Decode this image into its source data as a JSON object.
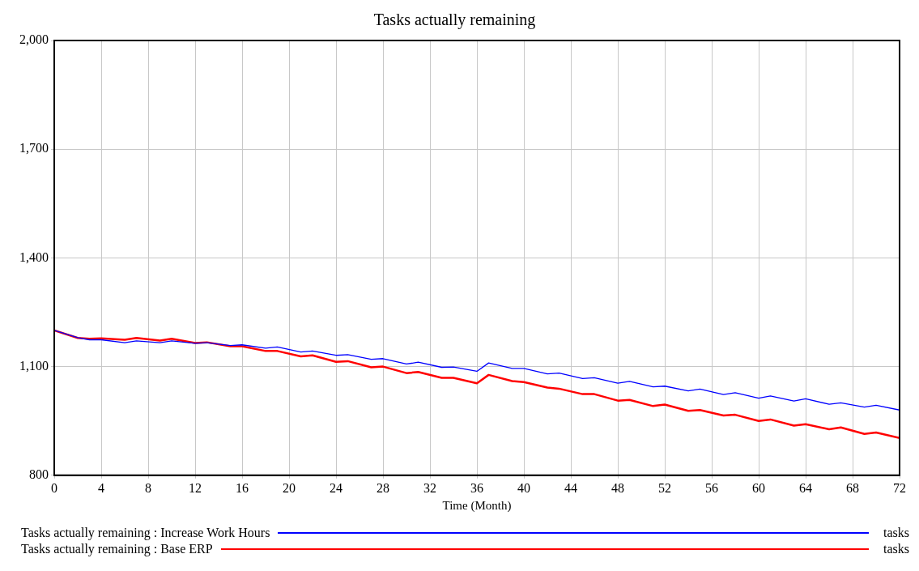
{
  "chart_data": {
    "type": "line",
    "title": "Tasks actually remaining",
    "xlabel": "Time (Month)",
    "x": [
      0,
      2,
      3,
      4,
      6,
      7,
      9,
      10,
      12,
      13,
      15,
      16,
      18,
      19,
      21,
      22,
      24,
      25,
      27,
      28,
      30,
      31,
      33,
      34,
      36,
      37,
      39,
      40,
      42,
      43,
      45,
      46,
      48,
      49,
      51,
      52,
      54,
      55,
      57,
      58,
      60,
      61,
      63,
      64,
      66,
      67,
      69,
      70,
      72
    ],
    "series": [
      {
        "name": "Tasks actually remaining : Increase Work Hours",
        "color": "#0000ff",
        "values": [
          1200,
          1180,
          1174,
          1174,
          1166,
          1171,
          1166,
          1171,
          1164,
          1166,
          1158,
          1160,
          1151,
          1154,
          1140,
          1143,
          1131,
          1133,
          1120,
          1122,
          1107,
          1112,
          1098,
          1099,
          1087,
          1110,
          1095,
          1095,
          1080,
          1082,
          1067,
          1069,
          1054,
          1059,
          1044,
          1046,
          1033,
          1038,
          1023,
          1028,
          1013,
          1019,
          1005,
          1011,
          996,
          1000,
          988,
          993,
          980
        ]
      },
      {
        "name": "Tasks actually remaining : Base ERP",
        "color": "#ff0000",
        "values": [
          1200,
          1179,
          1177,
          1178,
          1174,
          1179,
          1172,
          1177,
          1165,
          1167,
          1156,
          1156,
          1143,
          1143,
          1128,
          1131,
          1113,
          1115,
          1098,
          1100,
          1082,
          1085,
          1069,
          1069,
          1054,
          1077,
          1060,
          1057,
          1042,
          1039,
          1024,
          1024,
          1006,
          1008,
          991,
          995,
          978,
          980,
          965,
          967,
          950,
          954,
          937,
          941,
          927,
          932,
          914,
          918,
          903
        ]
      }
    ],
    "xlim": [
      0,
      72
    ],
    "xticks": [
      0,
      4,
      8,
      12,
      16,
      20,
      24,
      28,
      32,
      36,
      40,
      44,
      48,
      52,
      56,
      60,
      64,
      68,
      72
    ],
    "ylim": [
      800,
      2000
    ],
    "yticks": [
      800,
      {
        "value": 1100,
        "label": "1,100"
      },
      {
        "value": 1400,
        "label": "1,400"
      },
      {
        "value": 1700,
        "label": "1,700"
      },
      {
        "value": 2000,
        "label": "2,000"
      }
    ],
    "grid": true,
    "legend": "bottom",
    "marker": "none",
    "line_style": "solid",
    "annotations": [
      "tasks",
      "tasks"
    ]
  }
}
